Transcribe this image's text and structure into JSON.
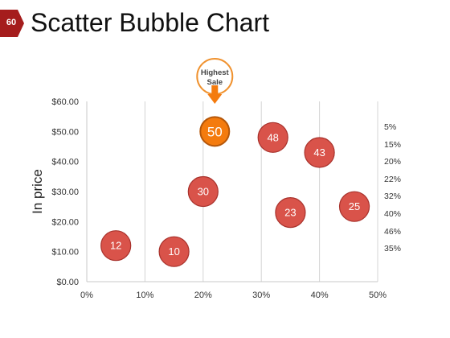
{
  "page": {
    "number": "60",
    "title": "Scatter Bubble Chart"
  },
  "colors": {
    "badge": "#a51d1d",
    "bubble_fill": "#d9534a",
    "bubble_stroke": "#ffffff",
    "highlight_fill": "#f47b0e",
    "highlight_stroke": "#b5570a",
    "grid": "#d4d4d4"
  },
  "callout": {
    "text_line1": "Highest",
    "text_line2": "Sale",
    "icon": "arrow-down-icon"
  },
  "legend": [
    "5%",
    "15%",
    "20%",
    "22%",
    "32%",
    "40%",
    "46%",
    "35%"
  ],
  "chart_data": {
    "type": "scatter",
    "title": "Scatter Bubble Chart",
    "xlabel": "",
    "ylabel": "In price",
    "xlim": [
      0,
      50
    ],
    "ylim": [
      0,
      60
    ],
    "x_ticks": [
      "0%",
      "10%",
      "20%",
      "30%",
      "40%",
      "50%"
    ],
    "y_ticks": [
      "$0.00",
      "$10.00",
      "$20.00",
      "$30.00",
      "$40.00",
      "$50.00",
      "$60.00"
    ],
    "grid": "vertical",
    "points": [
      {
        "x": 5,
        "y": 12,
        "size": 12,
        "label": "12"
      },
      {
        "x": 15,
        "y": 10,
        "size": 10,
        "label": "10"
      },
      {
        "x": 20,
        "y": 30,
        "size": 30,
        "label": "30"
      },
      {
        "x": 22,
        "y": 50,
        "size": 50,
        "label": "50",
        "highlight": true
      },
      {
        "x": 32,
        "y": 48,
        "size": 48,
        "label": "48"
      },
      {
        "x": 35,
        "y": 23,
        "size": 23,
        "label": "23"
      },
      {
        "x": 40,
        "y": 43,
        "size": 43,
        "label": "43"
      },
      {
        "x": 46,
        "y": 25,
        "size": 25,
        "label": "25"
      }
    ]
  }
}
